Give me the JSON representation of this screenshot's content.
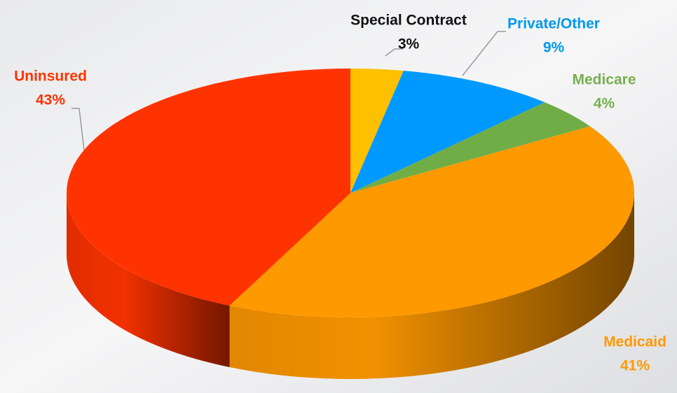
{
  "chart_data": {
    "type": "pie",
    "categories": [
      "Special Contract",
      "Private/Other",
      "Medicare",
      "Medicaid",
      "Uninsured"
    ],
    "values": [
      3,
      9,
      4,
      41,
      43
    ],
    "value_labels": [
      "3%",
      "9%",
      "4%",
      "41%",
      "43%"
    ],
    "colors": [
      "#ffc000",
      "#0099ff",
      "#70ad47",
      "#ff9900",
      "#ff3300"
    ]
  }
}
